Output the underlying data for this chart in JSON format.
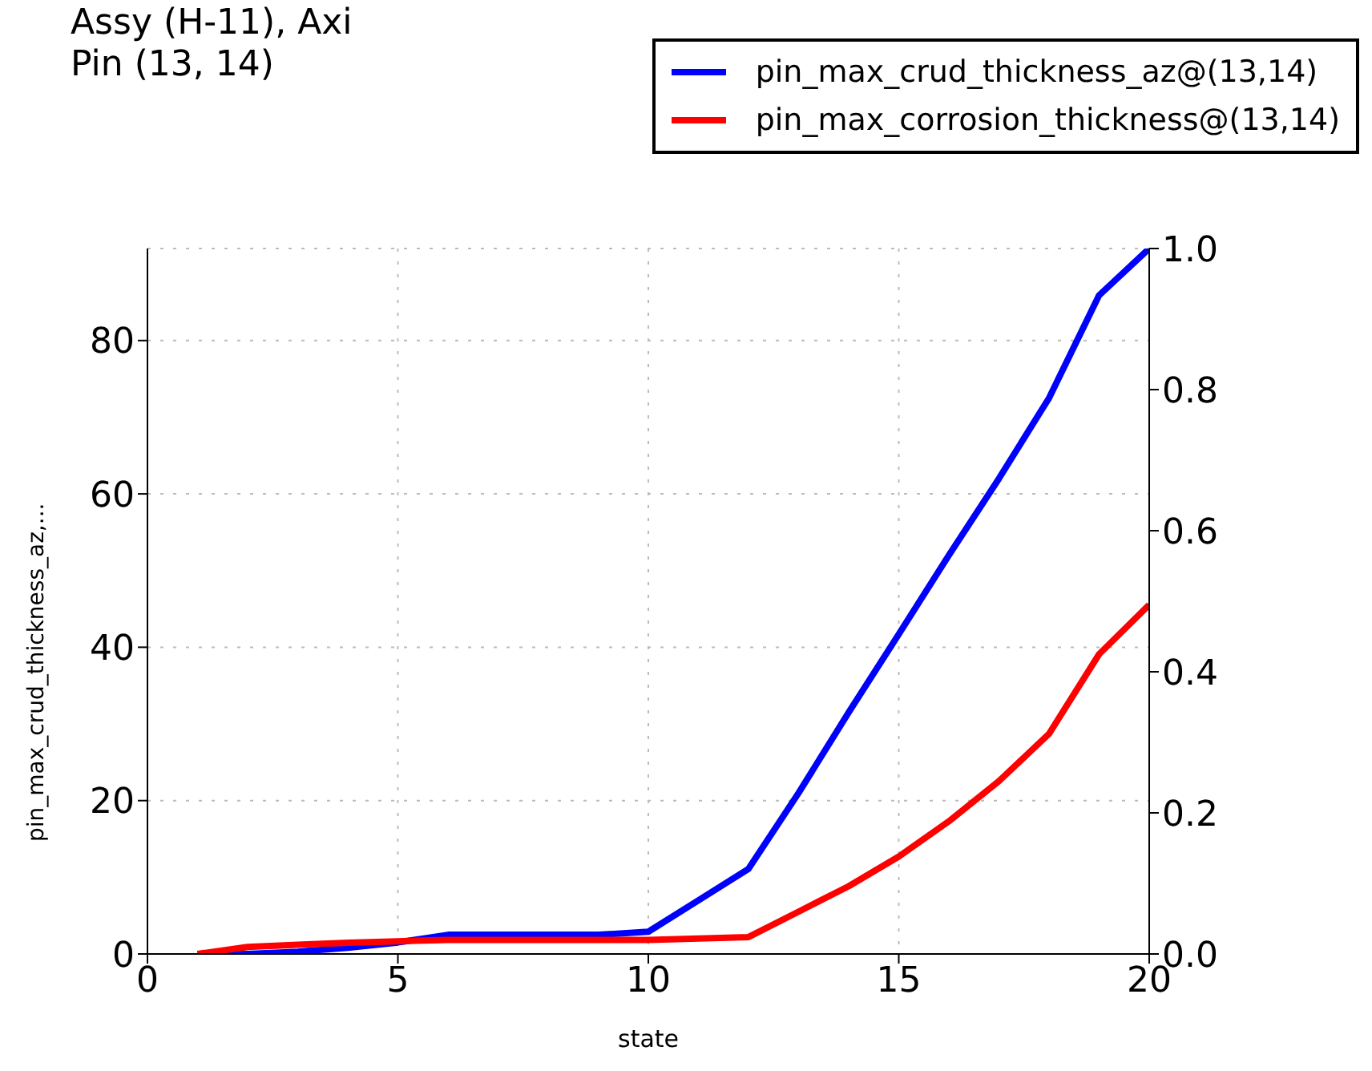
{
  "chart_data": {
    "type": "line",
    "title": "Assy (H-11), Axi\nPin (13, 14)",
    "xlabel": "state",
    "ylabel": "pin_max_crud_thickness_az,...",
    "x": [
      1,
      2,
      3,
      4,
      5,
      6,
      7,
      8,
      9,
      10,
      11,
      12,
      13,
      14,
      15,
      16,
      17,
      18,
      19,
      20
    ],
    "series": [
      {
        "name": "pin_max_crud_thickness_az@(13,14)",
        "color": "#0000ff",
        "values": [
          0,
          0,
          0.3,
          0.8,
          1.5,
          2.5,
          2.5,
          2.5,
          2.5,
          2.9,
          7,
          11.1,
          21,
          31.5,
          41.7,
          52,
          62,
          72.5,
          85.9,
          92
        ]
      },
      {
        "name": "pin_max_corrosion_thickness@(13,14)",
        "color": "#ff0000",
        "axis": "y2",
        "values": [
          0,
          0.01,
          0.013,
          0.016,
          0.018,
          0.02,
          0.02,
          0.02,
          0.02,
          0.02,
          0.022,
          0.024,
          0.06,
          0.096,
          0.138,
          0.188,
          0.245,
          0.312,
          0.425,
          0.495
        ]
      }
    ],
    "xlim": [
      0,
      20
    ],
    "xticks": [
      0,
      5,
      10,
      15,
      20
    ],
    "ylim": [
      0,
      92
    ],
    "yticks": [
      0,
      20,
      40,
      60,
      80
    ],
    "y2lim": [
      0,
      1
    ],
    "y2ticks": [
      {
        "value": 0,
        "label": "0.0"
      },
      {
        "value": 0.2,
        "label": "0.2"
      },
      {
        "value": 0.4,
        "label": "0.4"
      },
      {
        "value": 0.6,
        "label": "0.6"
      },
      {
        "value": 0.8,
        "label": "0.8"
      },
      {
        "value": 1,
        "label": "1.0"
      }
    ],
    "grid": true,
    "legend": "top right",
    "marker": "none",
    "line_style": "solid"
  }
}
